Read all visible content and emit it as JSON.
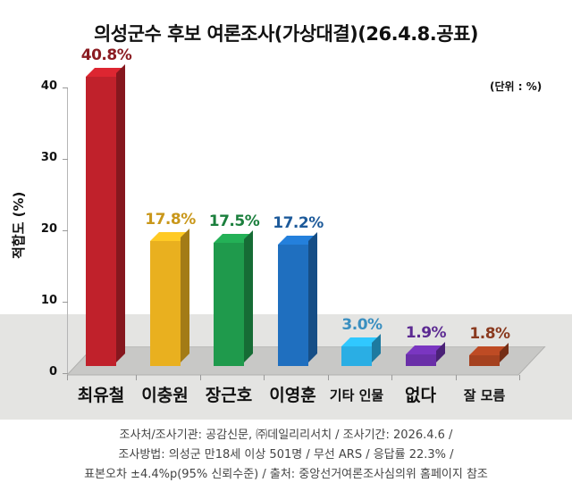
{
  "chart_data": {
    "type": "bar",
    "title": "의성군수 후보 여론조사(가상대결)(26.4.8.공표)",
    "unit_note": "(단위 : %)",
    "ylabel": "적합도 (%)",
    "xlabel": "",
    "ylim": [
      0,
      40
    ],
    "yticks": [
      "0",
      "10",
      "20",
      "30",
      "40"
    ],
    "categories": [
      "최유철",
      "이충원",
      "장근호",
      "이영훈",
      "기타 인물",
      "없다",
      "잘 모름"
    ],
    "values": [
      40.8,
      17.8,
      17.5,
      17.2,
      3.0,
      1.9,
      1.8
    ],
    "value_labels": [
      "40.8%",
      "17.8%",
      "17.5%",
      "17.2%",
      "3.0%",
      "1.9%",
      "1.8%"
    ],
    "colors": [
      "#c0212b",
      "#e9b01f",
      "#1f9a4c",
      "#1f6fbf",
      "#2aaee4",
      "#6a2fa8",
      "#a5411f"
    ],
    "label_colors": [
      "#8b1c22",
      "#c9971a",
      "#1b7f3d",
      "#1d5a9a",
      "#3a8fc0",
      "#5c2a92",
      "#8a3a1f"
    ],
    "grid": false,
    "legend": "none",
    "style": "3d-bar"
  },
  "footer": {
    "line1": "조사처/조사기관: 공감신문, ㈜데일리리서치 / 조사기간: 2026.4.6 /",
    "line2": "조사방법: 의성군 만18세 이상 501명 / 무선 ARS / 응답률 22.3% /",
    "line3": "표본오차 ±4.4%p(95% 신뢰수준) / 출처: 중앙선거여론조사심의위 홈페이지 참조"
  }
}
